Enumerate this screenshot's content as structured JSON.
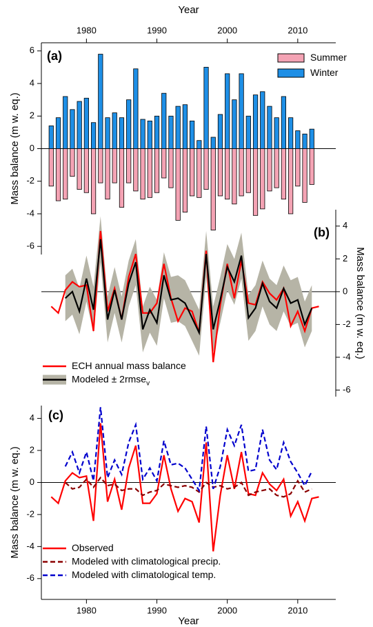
{
  "chart_data": [
    {
      "type": "bar",
      "label": "(a)",
      "xlabel": "Year",
      "ylabel": "Mass balance (m w. eq.)",
      "xaxis_position": "top",
      "yaxis_position": "left",
      "legend": "upper right",
      "xlim": [
        1973.6,
        2015.4
      ],
      "xticks": [
        1980,
        1990,
        2000,
        2010
      ],
      "ylim": [
        -6.5,
        6.5
      ],
      "yticks": [
        -6,
        -4,
        -2,
        0,
        2,
        4,
        6
      ],
      "x": [
        1975,
        1976,
        1977,
        1978,
        1979,
        1980,
        1981,
        1982,
        1983,
        1984,
        1985,
        1986,
        1987,
        1988,
        1989,
        1990,
        1991,
        1992,
        1993,
        1994,
        1995,
        1996,
        1997,
        1998,
        1999,
        2000,
        2001,
        2002,
        2003,
        2004,
        2005,
        2006,
        2007,
        2008,
        2009,
        2010,
        2011,
        2012
      ],
      "series": [
        {
          "name": "Summer",
          "color": "#f4a3b4",
          "values": [
            -2.3,
            -3.2,
            -3.1,
            -1.7,
            -2.5,
            -2.7,
            -4.0,
            -2.1,
            -3.1,
            -2.1,
            -3.6,
            -2.1,
            -2.6,
            -3.1,
            -3.0,
            -2.7,
            -1.8,
            -2.4,
            -4.4,
            -3.9,
            -2.9,
            -3.0,
            -2.5,
            -5.0,
            -2.9,
            -3.1,
            -3.4,
            -2.9,
            -2.7,
            -4.1,
            -3.7,
            -2.6,
            -2.4,
            -3.1,
            -4.0,
            -2.3,
            -3.3,
            -2.2
          ]
        },
        {
          "name": "Winter",
          "color": "#1e8fe6",
          "values": [
            1.4,
            1.9,
            3.2,
            2.4,
            2.9,
            3.1,
            1.6,
            5.8,
            1.9,
            2.2,
            1.9,
            3.0,
            4.9,
            1.8,
            1.7,
            2.0,
            3.4,
            2.0,
            2.6,
            2.7,
            1.7,
            0.5,
            5.0,
            0.7,
            2.1,
            4.6,
            3.0,
            4.6,
            2.0,
            3.3,
            3.5,
            2.6,
            1.9,
            3.2,
            1.9,
            1.1,
            0.9,
            1.2
          ]
        }
      ]
    },
    {
      "type": "line",
      "label": "(b)",
      "ylabel": "Mass balance (m w. eq.)",
      "yaxis_position": "right",
      "legend": "lower left",
      "xlim": [
        1973.6,
        2015.4
      ],
      "ylim": [
        -6.4,
        5
      ],
      "yticks": [
        -6,
        -4,
        -2,
        0,
        2,
        4
      ],
      "x": [
        1975,
        1976,
        1977,
        1978,
        1979,
        1980,
        1981,
        1982,
        1983,
        1984,
        1985,
        1986,
        1987,
        1988,
        1989,
        1990,
        1991,
        1992,
        1993,
        1994,
        1995,
        1996,
        1997,
        1998,
        1999,
        2000,
        2001,
        2002,
        2003,
        2004,
        2005,
        2006,
        2007,
        2008,
        2009,
        2010,
        2011,
        2012,
        2013
      ],
      "series": [
        {
          "name": "ECH annual mass balance",
          "color": "#ff0000",
          "values": [
            -0.9,
            -1.3,
            0.1,
            0.6,
            0.3,
            0.4,
            -2.4,
            3.7,
            -1.2,
            0.2,
            -1.7,
            0.9,
            2.3,
            -1.3,
            -1.3,
            -0.7,
            1.7,
            -0.4,
            -1.8,
            -1.0,
            -1.2,
            -2.5,
            2.5,
            -4.3,
            -0.8,
            1.7,
            -0.4,
            1.9,
            -0.7,
            -0.8,
            0.6,
            -0.1,
            -0.5,
            0.2,
            -2.1,
            -1.2,
            -2.4,
            -1.0,
            -0.9
          ]
        },
        {
          "name": "Modeled ± 2rmse",
          "name_subscript": "v",
          "color": "#000000",
          "band_color": "#b6b4a6",
          "error": 1.4,
          "values": [
            null,
            null,
            -0.4,
            0.0,
            -1.2,
            0.8,
            -1.1,
            3.2,
            -1.7,
            0.1,
            -1.7,
            0.5,
            1.8,
            -2.3,
            -1.1,
            -1.9,
            1.0,
            -0.5,
            -0.4,
            -0.7,
            -1.6,
            -2.5,
            2.3,
            -2.3,
            -0.5,
            1.5,
            0.6,
            2.2,
            -1.6,
            -1.0,
            0.5,
            -0.6,
            -1.0,
            0.2,
            -0.7,
            -0.5,
            -2.0,
            -1.0,
            null
          ]
        }
      ]
    },
    {
      "type": "line",
      "label": "(c)",
      "xlabel": "Year",
      "ylabel": "Mass balance (m w. eq.)",
      "xaxis_position": "bottom",
      "yaxis_position": "left",
      "legend": "lower left",
      "xlim": [
        1973.6,
        2015.4
      ],
      "xticks": [
        1980,
        1990,
        2000,
        2010
      ],
      "ylim": [
        -7.3,
        4.8
      ],
      "yticks": [
        -6,
        -4,
        -2,
        0,
        2,
        4
      ],
      "x": [
        1975,
        1976,
        1977,
        1978,
        1979,
        1980,
        1981,
        1982,
        1983,
        1984,
        1985,
        1986,
        1987,
        1988,
        1989,
        1990,
        1991,
        1992,
        1993,
        1994,
        1995,
        1996,
        1997,
        1998,
        1999,
        2000,
        2001,
        2002,
        2003,
        2004,
        2005,
        2006,
        2007,
        2008,
        2009,
        2010,
        2011,
        2012,
        2013
      ],
      "series": [
        {
          "name": "Observed",
          "color": "#ff0000",
          "dashed": false,
          "values": [
            -0.9,
            -1.3,
            0.1,
            0.6,
            0.3,
            0.4,
            -2.4,
            3.7,
            -1.2,
            0.2,
            -1.7,
            0.9,
            2.3,
            -1.3,
            -1.3,
            -0.7,
            1.7,
            -0.4,
            -1.8,
            -1.0,
            -1.2,
            -2.5,
            2.5,
            -4.3,
            -0.8,
            1.7,
            -0.4,
            1.9,
            -0.7,
            -0.8,
            0.6,
            -0.1,
            -0.5,
            0.2,
            -2.1,
            -1.2,
            -2.4,
            -1.0,
            -0.9
          ]
        },
        {
          "name": "Modeled with climatological precip.",
          "color": "#8b0000",
          "dashed": true,
          "values": [
            null,
            null,
            0.0,
            -0.4,
            -0.3,
            0.2,
            -0.3,
            0.3,
            -0.2,
            -0.1,
            -0.5,
            -0.4,
            -0.4,
            -0.8,
            -0.6,
            -0.5,
            -0.1,
            -0.2,
            -0.3,
            -0.2,
            -0.3,
            -0.6,
            0.0,
            -0.3,
            -0.2,
            -0.4,
            -0.3,
            0.0,
            -0.8,
            -0.6,
            -0.5,
            -0.4,
            -0.8,
            -0.9,
            -0.7,
            0.1,
            -0.6,
            -0.4,
            null
          ]
        },
        {
          "name": "Modeled with climatological temp.",
          "color": "#0000cd",
          "dashed": true,
          "values": [
            null,
            null,
            1.0,
            1.9,
            0.6,
            1.9,
            0.1,
            4.7,
            0.3,
            1.4,
            0.5,
            2.5,
            3.6,
            0.2,
            0.9,
            0.1,
            2.6,
            1.1,
            1.2,
            0.9,
            0.2,
            -0.5,
            3.5,
            -0.4,
            1.0,
            3.3,
            2.3,
            3.6,
            0.7,
            0.8,
            3.3,
            1.4,
            0.8,
            2.5,
            1.3,
            0.6,
            -0.2,
            0.7,
            null
          ]
        }
      ]
    }
  ]
}
